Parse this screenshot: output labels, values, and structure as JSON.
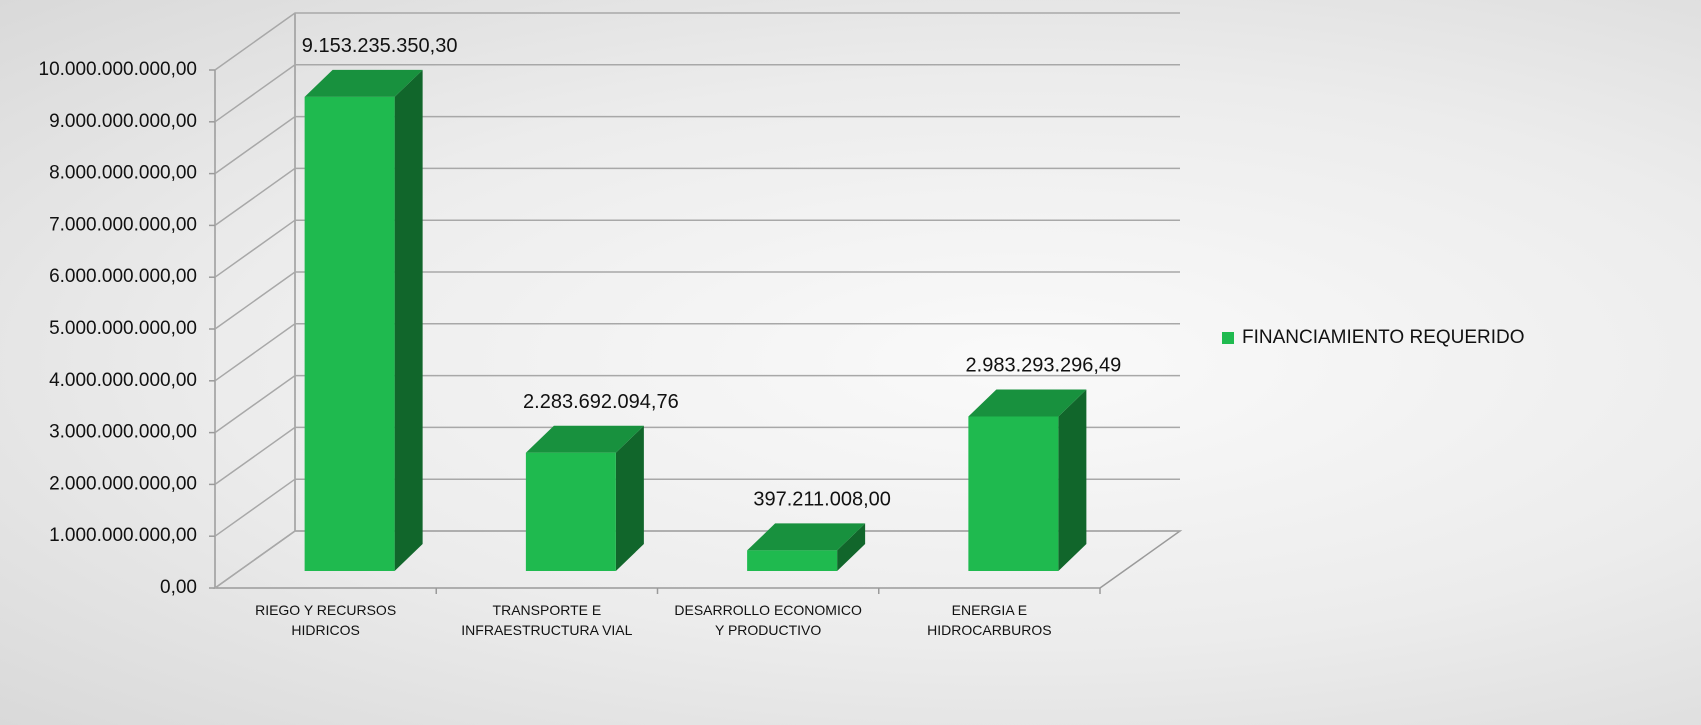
{
  "chart_data": {
    "type": "bar3d",
    "categories": [
      "RIEGO Y RECURSOS HIDRICOS",
      "TRANSPORTE E INFRAESTRUCTURA VIAL",
      "DESARROLLO ECONOMICO Y PRODUCTIVO",
      "ENERGIA E HIDROCARBUROS"
    ],
    "series": [
      {
        "name": "FINANCIAMIENTO REQUERIDO",
        "color": "#1fba4f",
        "values": [
          9153235350.3,
          2283692094.76,
          397211008.0,
          2983293296.49
        ],
        "value_labels": [
          "9.153.235.350,30",
          "2.283.692.094,76",
          "397.211.008,00",
          "2.983.293.296,49"
        ]
      }
    ],
    "ylim": [
      0,
      10000000000
    ],
    "yticks": [
      {
        "value": 0,
        "label": "0,00"
      },
      {
        "value": 1000000000,
        "label": "1.000.000.000,00"
      },
      {
        "value": 2000000000,
        "label": "2.000.000.000,00"
      },
      {
        "value": 3000000000,
        "label": "3.000.000.000,00"
      },
      {
        "value": 4000000000,
        "label": "4.000.000.000,00"
      },
      {
        "value": 5000000000,
        "label": "5.000.000.000,00"
      },
      {
        "value": 6000000000,
        "label": "6.000.000.000,00"
      },
      {
        "value": 7000000000,
        "label": "7.000.000.000,00"
      },
      {
        "value": 8000000000,
        "label": "8.000.000.000,00"
      },
      {
        "value": 9000000000,
        "label": "9.000.000.000,00"
      },
      {
        "value": 10000000000,
        "label": "10.000.000.000,00"
      }
    ],
    "grid": true,
    "legend": "right"
  }
}
